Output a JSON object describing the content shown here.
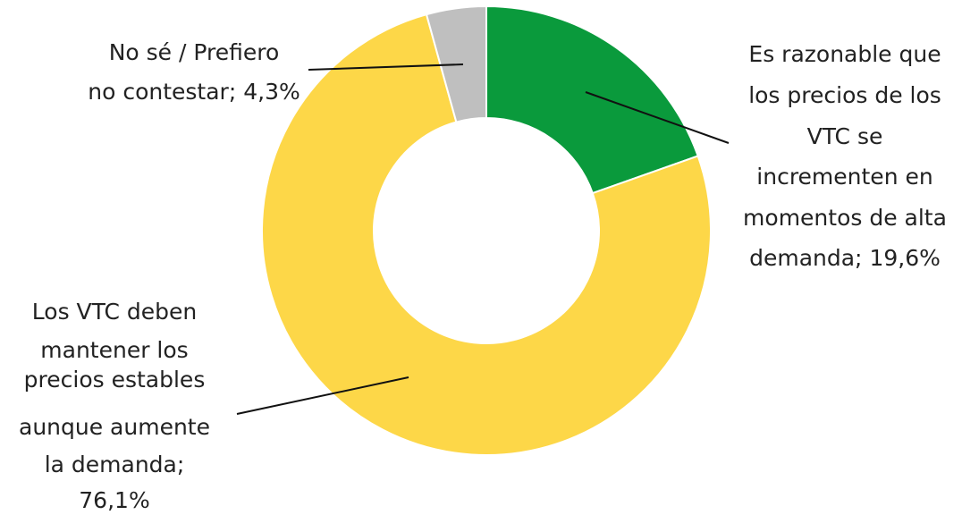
{
  "chart_data": {
    "type": "donut",
    "categories": [
      "Es razonable que los precios de los VTC se incrementen en momentos de alta demanda;",
      "Los VTC deben mantener los precios estables aunque aumente la demanda;",
      "No sé / Prefiero no contestar;"
    ],
    "values": [
      19.6,
      76.1,
      4.3
    ],
    "value_labels": [
      "19,6%",
      "76,1%",
      "4,3%"
    ],
    "colors": [
      "#0a9a3c",
      "#fdd748",
      "#bfbfbf"
    ]
  }
}
